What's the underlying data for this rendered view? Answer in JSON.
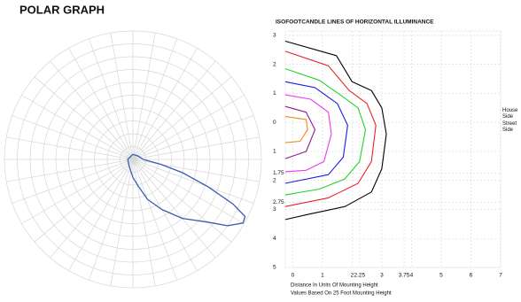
{
  "chart_data": [
    {
      "type": "polar",
      "title": "POLAR GRAPH",
      "rlim": [
        0,
        1
      ],
      "rticks": [
        0.1,
        0.2,
        0.3,
        0.4,
        0.5,
        0.6,
        0.7,
        0.8,
        0.9,
        1.0
      ],
      "series": [
        {
          "color": "#3b5bb5",
          "theta": [
            -180,
            -90,
            -30,
            0,
            10,
            20,
            30,
            40,
            50,
            55,
            60,
            63,
            66,
            70,
            75,
            80,
            90,
            120,
            180
          ],
          "r": [
            0.04,
            0.04,
            0.06,
            0.14,
            0.2,
            0.33,
            0.45,
            0.6,
            0.76,
            0.9,
            0.99,
            0.98,
            0.85,
            0.62,
            0.4,
            0.22,
            0.08,
            0.05,
            0.04
          ]
        }
      ]
    },
    {
      "type": "contour",
      "title": "ISOFOOTCANDLE LINES OF HORIZONTAL ILLUMINANCE",
      "xlabel": "Distance In Units Of Mounting Height",
      "xlabel2": "Values Based On 25 Foot Mounting Height",
      "house_label": "House Side",
      "street_label": "Street Side",
      "xlim": [
        -0.25,
        7
      ],
      "ylim": [
        -5,
        3.15
      ],
      "xticks": [
        0,
        1,
        2,
        2.25,
        3,
        3.75,
        4,
        5,
        6,
        7
      ],
      "yticks": [
        3,
        2,
        1,
        0,
        {
          "value": -1,
          "label": "1"
        },
        {
          "value": -1.75,
          "label": "1.75"
        },
        {
          "value": -2,
          "label": "2"
        },
        {
          "value": -2.75,
          "label": "2.75"
        },
        {
          "value": -3,
          "label": "3"
        },
        {
          "value": -4,
          "label": "4"
        },
        {
          "value": -5,
          "label": "5"
        }
      ],
      "grid": true,
      "series": [
        {
          "color": "#000000",
          "x": [
            -0.25,
            1.47,
            2,
            2.65,
            3,
            3.15,
            3,
            2.65,
            1.76,
            0.6,
            -0.25
          ],
          "y": [
            2.8,
            2.3,
            1.4,
            1.1,
            0.5,
            -0.4,
            -1.6,
            -2.4,
            -2.9,
            -3.15,
            -3.35
          ]
        },
        {
          "color": "#e8232a",
          "x": [
            -0.25,
            1.2,
            1.9,
            2.5,
            2.8,
            2.65,
            2.2,
            1.2,
            -0.25
          ],
          "y": [
            2.45,
            1.95,
            1.1,
            0.65,
            -0.1,
            -1.35,
            -2.1,
            -2.6,
            -2.9
          ]
        },
        {
          "color": "#22d42a",
          "x": [
            -0.25,
            0.9,
            1.6,
            2.2,
            2.45,
            2.25,
            1.75,
            0.9,
            -0.25
          ],
          "y": [
            1.85,
            1.45,
            0.95,
            0.5,
            -0.25,
            -1.35,
            -1.95,
            -2.3,
            -2.5
          ]
        },
        {
          "color": "#1d1de0",
          "x": [
            -0.25,
            0.75,
            1.5,
            1.85,
            1.7,
            1.2,
            -0.25
          ],
          "y": [
            1.4,
            1.2,
            0.65,
            -0.1,
            -1.2,
            -1.8,
            -2.1
          ]
        },
        {
          "color": "#e83ce8",
          "x": [
            -0.25,
            0.6,
            1.2,
            1.3,
            1.05,
            0.45,
            -0.25
          ],
          "y": [
            0.95,
            0.8,
            0.35,
            -0.4,
            -1.35,
            -1.65,
            -1.7
          ]
        },
        {
          "color": "#8a1c8a",
          "x": [
            -0.25,
            0.45,
            0.75,
            0.45,
            -0.25
          ],
          "y": [
            0.55,
            0.35,
            -0.25,
            -1.0,
            -1.25
          ]
        },
        {
          "color": "#f08a1c",
          "x": [
            -0.25,
            0.45,
            0.5,
            0.25,
            -0.25
          ],
          "y": [
            0.2,
            0.1,
            -0.25,
            -0.65,
            -0.7
          ]
        }
      ]
    }
  ]
}
